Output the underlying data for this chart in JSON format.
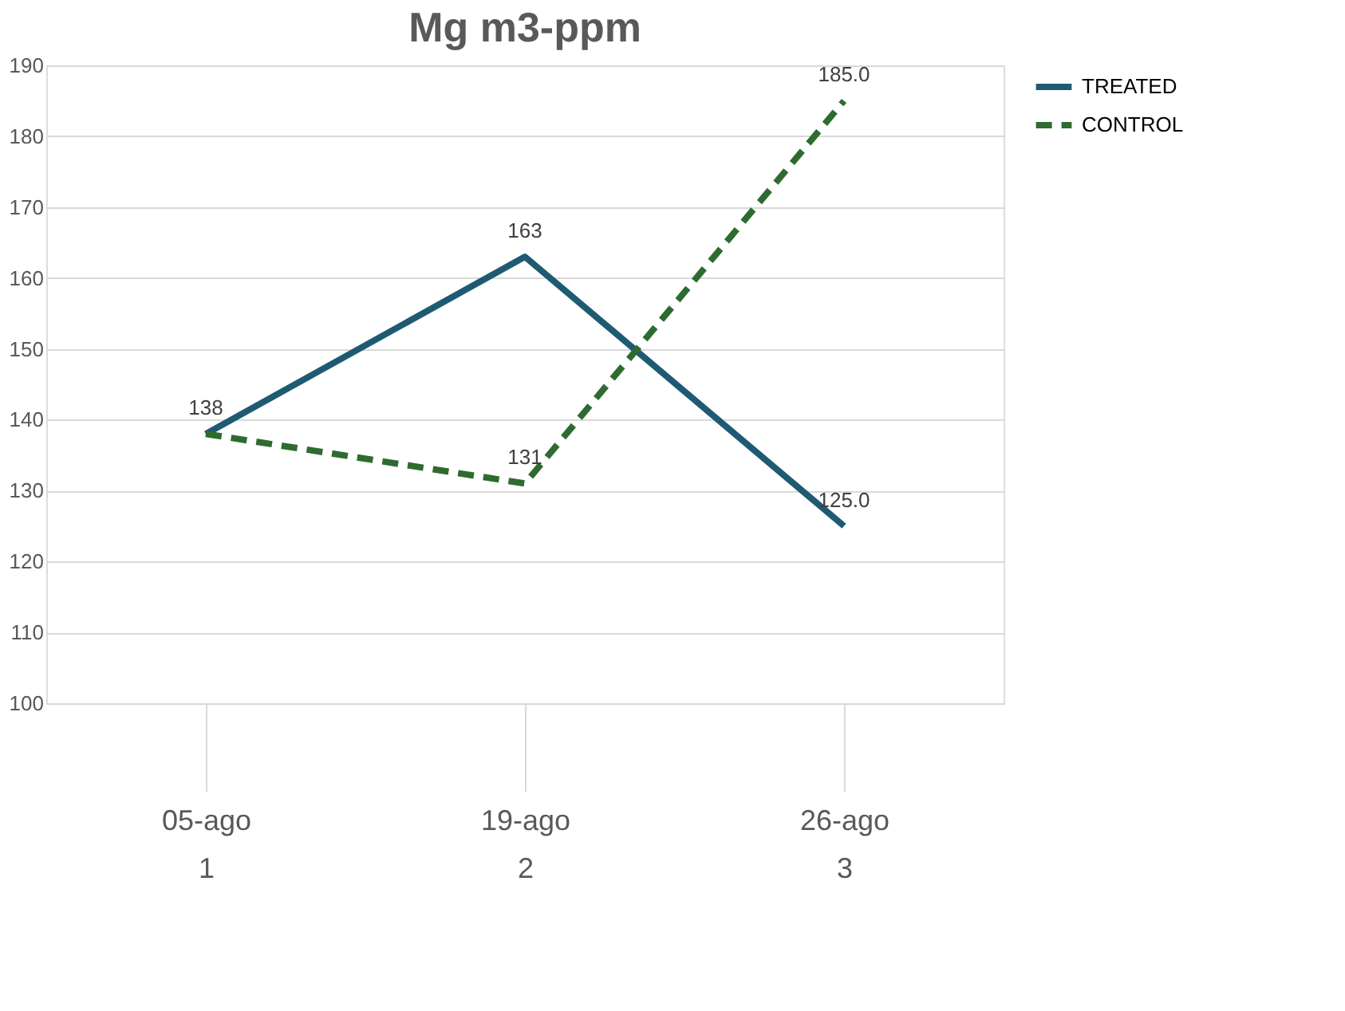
{
  "chart_data": {
    "type": "line",
    "title": "Mg m3-ppm",
    "categories": [
      "05-ago\n1",
      "19-ago\n2",
      "26-ago\n3"
    ],
    "series": [
      {
        "name": "TREATED",
        "color": "#1f5a73",
        "line_style": "solid",
        "values": [
          138,
          163,
          125
        ],
        "value_labels": [
          "138",
          "163",
          "125.0"
        ]
      },
      {
        "name": "CONTROL",
        "color": "#2e6b30",
        "line_style": "dashed",
        "values": [
          138,
          131,
          185
        ],
        "value_labels": [
          null,
          "131",
          "185.0"
        ]
      }
    ],
    "ylim": [
      100,
      190
    ],
    "yticks": [
      100,
      110,
      120,
      130,
      140,
      150,
      160,
      170,
      180,
      190
    ],
    "grid": "y",
    "legend": "right",
    "marker": "none"
  }
}
